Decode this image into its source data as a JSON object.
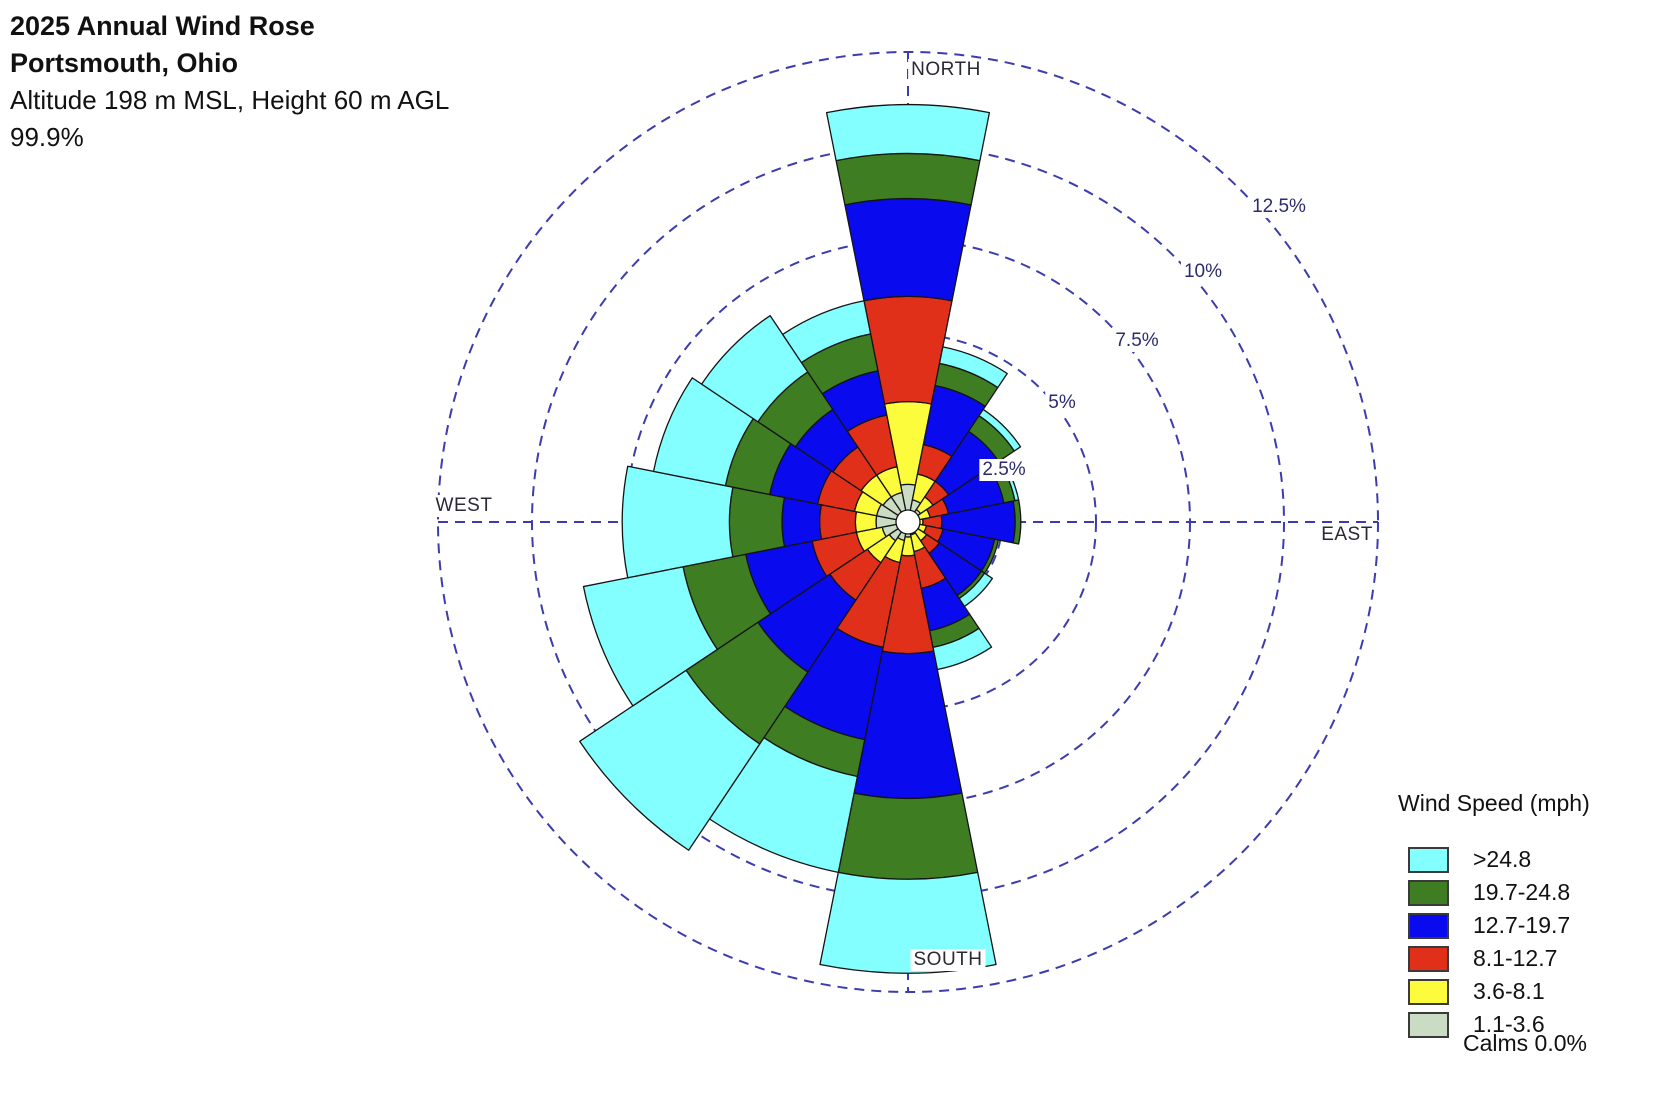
{
  "header": {
    "title": "2025 Annual Wind Rose",
    "subtitle": "Portsmouth, Ohio",
    "line3": "Altitude 198 m MSL, Height 60 m AGL",
    "line4": "99.9%"
  },
  "compass": {
    "north": "NORTH",
    "east": "EAST",
    "south": "SOUTH",
    "west": "WEST"
  },
  "legend": {
    "title": "Wind Speed (mph)",
    "entries": [
      {
        "label": ">24.8",
        "color": "#84ffff"
      },
      {
        "label": "19.7-24.8",
        "color": "#3e7d22"
      },
      {
        "label": "12.7-19.7",
        "color": "#0a0aee"
      },
      {
        "label": "8.1-12.7",
        "color": "#e0301a"
      },
      {
        "label": "3.6-8.1",
        "color": "#fcfc3c"
      },
      {
        "label": "1.1-3.6",
        "color": "#cadcc4"
      }
    ],
    "calms": "Calms 0.0%"
  },
  "chart_data": {
    "type": "wind-rose",
    "title": "2025 Annual Wind Rose",
    "location": "Portsmouth, Ohio",
    "units": "percent frequency of wind direction",
    "data_recovery_pct": 99.9,
    "calms_pct": 0.0,
    "ring_values": [
      2.5,
      5,
      7.5,
      10,
      12.5
    ],
    "ring_labels": [
      "2.5%",
      "5%",
      "7.5%",
      "10%",
      "12.5%"
    ],
    "axis_max_pct": 12.5,
    "speed_bins_mph": [
      "1.1-3.6",
      "3.6-8.1",
      "8.1-12.7",
      "12.7-19.7",
      "19.7-24.8",
      ">24.8"
    ],
    "bin_colors": [
      "#cadcc4",
      "#fcfc3c",
      "#e0301a",
      "#0a0aee",
      "#3e7d22",
      "#84ffff"
    ],
    "directions": [
      "N",
      "NNE",
      "NE",
      "ENE",
      "E",
      "ESE",
      "SE",
      "SSE",
      "S",
      "SSW",
      "SW",
      "WSW",
      "W",
      "WNW",
      "NW",
      "NNW"
    ],
    "cumulative_pct": {
      "N": [
        1.0,
        3.2,
        6.0,
        8.6,
        9.8,
        11.1
      ],
      "NNE": [
        0.6,
        1.3,
        2.1,
        3.7,
        4.3,
        4.75
      ],
      "NE": [
        0.4,
        0.8,
        1.3,
        2.9,
        3.4,
        3.6
      ],
      "ENE": [
        0.3,
        0.6,
        1.1,
        2.6,
        2.9,
        3.0
      ],
      "E": [
        0.2,
        0.4,
        0.9,
        2.85,
        3.0,
        3.0
      ],
      "ESE": [
        0.25,
        0.5,
        0.95,
        2.35,
        2.45,
        2.45
      ],
      "SE": [
        0.3,
        0.6,
        1.0,
        2.35,
        2.45,
        2.7
      ],
      "SSE": [
        0.35,
        0.8,
        1.8,
        2.95,
        3.4,
        4.0
      ],
      "S": [
        0.4,
        0.9,
        3.5,
        7.35,
        9.5,
        12.0
      ],
      "SSW": [
        0.5,
        1.1,
        3.4,
        5.9,
        6.9,
        9.5
      ],
      "SW": [
        0.6,
        1.3,
        2.5,
        4.8,
        7.1,
        10.5
      ],
      "WSW": [
        0.7,
        1.4,
        2.6,
        4.4,
        6.1,
        8.8
      ],
      "W": [
        0.85,
        1.4,
        2.35,
        3.35,
        4.75,
        7.6
      ],
      "WNW": [
        0.85,
        1.45,
        2.45,
        3.75,
        4.95,
        6.9
      ],
      "NW": [
        0.8,
        1.5,
        2.4,
        3.6,
        4.8,
        6.6
      ],
      "NNW": [
        0.8,
        1.5,
        2.9,
        4.1,
        5.1,
        6.0
      ]
    },
    "grid_color": "#3c3cae",
    "legend_position": "bottom-right"
  }
}
